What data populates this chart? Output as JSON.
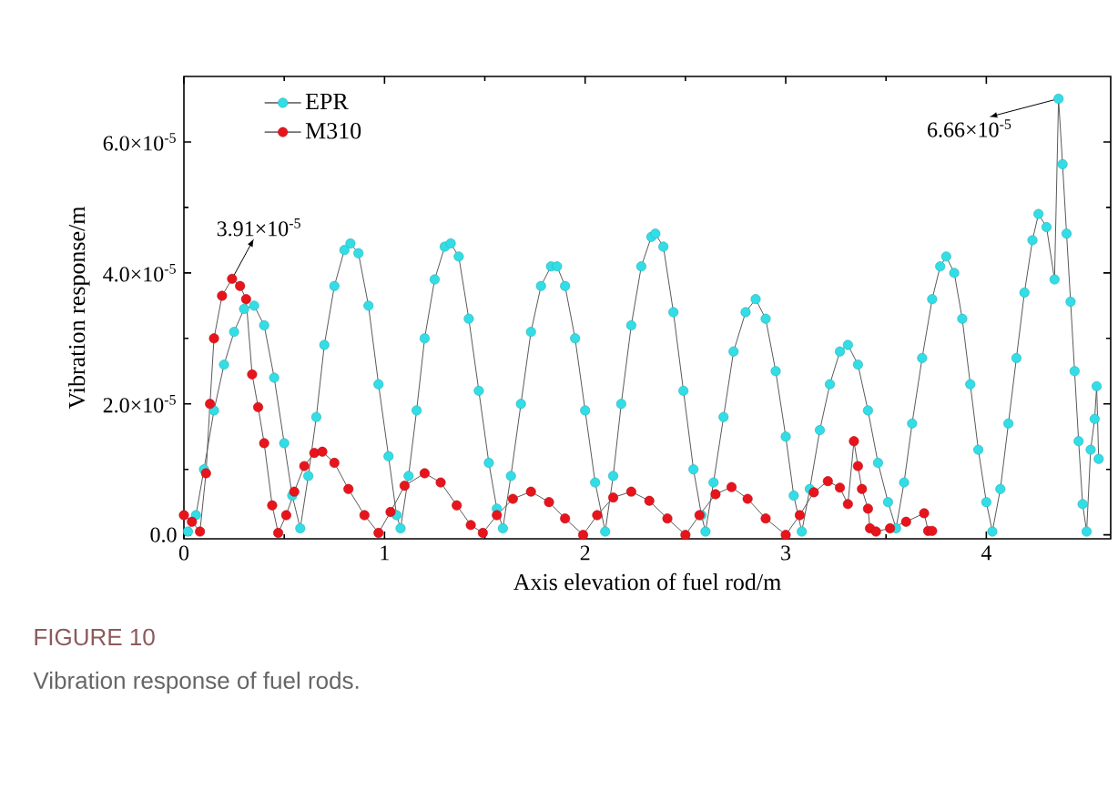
{
  "chart_data": {
    "type": "line",
    "xlabel": "Axis elevation of fuel rod/m",
    "ylabel": "Vibration response/m",
    "xlim": [
      0,
      4.62
    ],
    "ylim": [
      -6e-07,
      7e-05
    ],
    "xticks": [
      0,
      1,
      2,
      3,
      4
    ],
    "yticks": [
      {
        "value": 0,
        "label": "0.0"
      },
      {
        "value": 2e-05,
        "label": "2.0×10$^{-5}$"
      },
      {
        "value": 4e-05,
        "label": "4.0×10$^{-5}$"
      },
      {
        "value": 6e-05,
        "label": "6.0×10$^{-5}$"
      }
    ],
    "legend": "top left",
    "marker": "circle",
    "line_style": "solid",
    "grid": false,
    "series": [
      {
        "name": "EPR",
        "color": "#33dde6",
        "x": [
          0.02,
          0.06,
          0.1,
          0.15,
          0.2,
          0.25,
          0.3,
          0.35,
          0.4,
          0.45,
          0.5,
          0.54,
          0.58,
          0.62,
          0.66,
          0.7,
          0.75,
          0.8,
          0.83,
          0.87,
          0.92,
          0.97,
          1.02,
          1.06,
          1.08,
          1.12,
          1.16,
          1.2,
          1.25,
          1.3,
          1.33,
          1.37,
          1.42,
          1.47,
          1.52,
          1.56,
          1.59,
          1.63,
          1.68,
          1.73,
          1.78,
          1.83,
          1.86,
          1.9,
          1.95,
          2.0,
          2.05,
          2.1,
          2.14,
          2.18,
          2.23,
          2.28,
          2.33,
          2.35,
          2.39,
          2.44,
          2.49,
          2.54,
          2.58,
          2.6,
          2.64,
          2.69,
          2.74,
          2.8,
          2.85,
          2.9,
          2.95,
          3.0,
          3.04,
          3.08,
          3.12,
          3.17,
          3.22,
          3.27,
          3.31,
          3.36,
          3.41,
          3.46,
          3.51,
          3.55,
          3.59,
          3.63,
          3.68,
          3.73,
          3.77,
          3.8,
          3.84,
          3.88,
          3.92,
          3.96,
          4.0,
          4.03,
          4.07,
          4.11,
          4.15,
          4.19,
          4.23,
          4.26,
          4.3,
          4.34,
          4.36,
          4.38,
          4.4,
          4.42,
          4.44,
          4.46,
          4.48,
          4.5,
          4.52,
          4.54,
          4.55,
          4.56
        ],
        "values": [
          5e-07,
          3e-06,
          1e-05,
          1.9e-05,
          2.6e-05,
          3.1e-05,
          3.45e-05,
          3.5e-05,
          3.2e-05,
          2.4e-05,
          1.4e-05,
          6e-06,
          1e-06,
          9e-06,
          1.8e-05,
          2.9e-05,
          3.8e-05,
          4.35e-05,
          4.45e-05,
          4.3e-05,
          3.5e-05,
          2.3e-05,
          1.2e-05,
          3e-06,
          1e-06,
          9e-06,
          1.9e-05,
          3e-05,
          3.9e-05,
          4.4e-05,
          4.45e-05,
          4.25e-05,
          3.3e-05,
          2.2e-05,
          1.1e-05,
          4e-06,
          1e-06,
          9e-06,
          2e-05,
          3.1e-05,
          3.8e-05,
          4.1e-05,
          4.1e-05,
          3.8e-05,
          3e-05,
          1.9e-05,
          8e-06,
          5e-07,
          9e-06,
          2e-05,
          3.2e-05,
          4.1e-05,
          4.55e-05,
          4.6e-05,
          4.4e-05,
          3.4e-05,
          2.2e-05,
          1e-05,
          3e-06,
          5e-07,
          8e-06,
          1.8e-05,
          2.8e-05,
          3.4e-05,
          3.6e-05,
          3.3e-05,
          2.5e-05,
          1.5e-05,
          6e-06,
          5e-07,
          7e-06,
          1.6e-05,
          2.3e-05,
          2.8e-05,
          2.9e-05,
          2.6e-05,
          1.9e-05,
          1.1e-05,
          5e-06,
          1e-06,
          8e-06,
          1.7e-05,
          2.7e-05,
          3.6e-05,
          4.1e-05,
          4.25e-05,
          4e-05,
          3.3e-05,
          2.3e-05,
          1.3e-05,
          5e-06,
          5e-07,
          7e-06,
          1.7e-05,
          2.7e-05,
          3.7e-05,
          4.5e-05,
          4.9e-05,
          4.7e-05,
          3.9e-05,
          6.66e-05,
          5.66e-05,
          4.6e-05,
          3.56e-05,
          2.5e-05,
          1.43e-05,
          4.7e-06,
          5e-07,
          1.3e-05,
          1.77e-05,
          2.27e-05,
          1.16e-05
        ]
      },
      {
        "name": "M310",
        "color": "#e8141c",
        "x": [
          0,
          0.04,
          0.08,
          0.11,
          0.13,
          0.15,
          0.19,
          0.24,
          0.28,
          0.31,
          0.34,
          0.37,
          0.4,
          0.44,
          0.47,
          0.51,
          0.55,
          0.6,
          0.65,
          0.69,
          0.75,
          0.82,
          0.9,
          0.97,
          1.03,
          1.1,
          1.2,
          1.28,
          1.36,
          1.43,
          1.49,
          1.56,
          1.64,
          1.73,
          1.82,
          1.9,
          1.99,
          2.06,
          2.14,
          2.23,
          2.32,
          2.41,
          2.5,
          2.57,
          2.65,
          2.73,
          2.81,
          2.9,
          3.0,
          3.07,
          3.14,
          3.21,
          3.27,
          3.31,
          3.34,
          3.36,
          3.38,
          3.41,
          3.42,
          3.45,
          3.52,
          3.6,
          3.69,
          3.71,
          3.73
        ],
        "values": [
          3e-06,
          2e-06,
          5e-07,
          9.4e-06,
          2e-05,
          3e-05,
          3.65e-05,
          3.91e-05,
          3.8e-05,
          3.6e-05,
          2.45e-05,
          1.95e-05,
          1.4e-05,
          4.5e-06,
          3e-07,
          3e-06,
          6.6e-06,
          1.05e-05,
          1.25e-05,
          1.27e-05,
          1.1e-05,
          7e-06,
          3e-06,
          3e-07,
          3.5e-06,
          7.5e-06,
          9.4e-06,
          8e-06,
          4.5e-06,
          1.5e-06,
          3e-07,
          3e-06,
          5.5e-06,
          6.6e-06,
          5e-06,
          2.5e-06,
          0,
          3e-06,
          5.7e-06,
          6.6e-06,
          5.2e-06,
          2.5e-06,
          0,
          3e-06,
          6.2e-06,
          7.3e-06,
          5.5e-06,
          2.5e-06,
          0,
          3e-06,
          6.5e-06,
          8.2e-06,
          7.2e-06,
          4.7e-06,
          1.43e-05,
          1.05e-05,
          7e-06,
          4e-06,
          1e-06,
          5e-07,
          1e-06,
          2e-06,
          3.3e-06,
          6e-07,
          6e-07
        ]
      }
    ],
    "annotations": [
      {
        "text": "3.91×10$^{-5}$",
        "x": 0.24,
        "y": 3.91e-05
      },
      {
        "text": "6.66×10$^{-5}$",
        "x": 4.36,
        "y": 6.66e-05
      },
      "FIGURE 10",
      "Vibration response of fuel rods."
    ]
  }
}
